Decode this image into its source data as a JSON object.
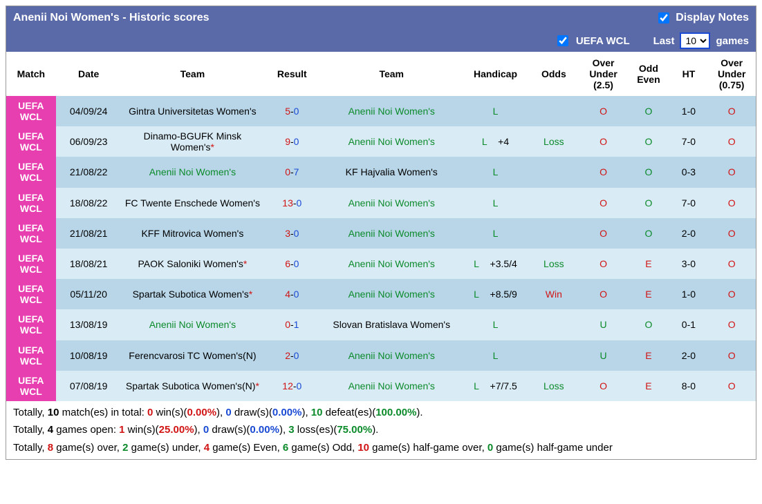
{
  "header": {
    "title": "Anenii Noi Women's - Historic scores",
    "display_notes_label": "Display Notes",
    "display_notes_checked": true
  },
  "filter": {
    "competition_checked": true,
    "competition_label": "UEFA WCL",
    "last_label": "Last",
    "games_label": "games",
    "selected_count": "10"
  },
  "columns": {
    "match": "Match",
    "date": "Date",
    "team1": "Team",
    "result": "Result",
    "team2": "Team",
    "handicap": "Handicap",
    "odds": "Odds",
    "ou25": "Over Under (2.5)",
    "oe": "Odd Even",
    "ht": "HT",
    "ou075": "Over Under (0.75)"
  },
  "rows": [
    {
      "match": "UEFA WCL",
      "date": "04/09/24",
      "t1": "Gintra Universitetas Women's",
      "t1_green": false,
      "t1_star": "",
      "r1": "5",
      "r2": "0",
      "t2": "Anenii Noi Women's",
      "t2_green": true,
      "hcap": "L",
      "hcap_val": "",
      "odds": "",
      "odds_cls": "",
      "ou25": "O",
      "ou25_cls": "red",
      "oe": "O",
      "oe_cls": "green",
      "ht": "1-0",
      "ou075": "O",
      "ou075_cls": "red"
    },
    {
      "match": "UEFA WCL",
      "date": "06/09/23",
      "t1": "Dinamo-BGUFK Minsk Women's",
      "t1_green": false,
      "t1_star": "*",
      "r1": "9",
      "r2": "0",
      "t2": "Anenii Noi Women's",
      "t2_green": true,
      "hcap": "L",
      "hcap_val": "+4",
      "odds": "Loss",
      "odds_cls": "green",
      "ou25": "O",
      "ou25_cls": "red",
      "oe": "O",
      "oe_cls": "green",
      "ht": "7-0",
      "ou075": "O",
      "ou075_cls": "red"
    },
    {
      "match": "UEFA WCL",
      "date": "21/08/22",
      "t1": "Anenii Noi Women's",
      "t1_green": true,
      "t1_star": "",
      "r1": "0",
      "r2": "7",
      "t2": "KF Hajvalia Women's",
      "t2_green": false,
      "hcap": "L",
      "hcap_val": "",
      "odds": "",
      "odds_cls": "",
      "ou25": "O",
      "ou25_cls": "red",
      "oe": "O",
      "oe_cls": "green",
      "ht": "0-3",
      "ou075": "O",
      "ou075_cls": "red"
    },
    {
      "match": "UEFA WCL",
      "date": "18/08/22",
      "t1": "FC Twente Enschede Women's",
      "t1_green": false,
      "t1_star": "",
      "r1": "13",
      "r2": "0",
      "t2": "Anenii Noi Women's",
      "t2_green": true,
      "hcap": "L",
      "hcap_val": "",
      "odds": "",
      "odds_cls": "",
      "ou25": "O",
      "ou25_cls": "red",
      "oe": "O",
      "oe_cls": "green",
      "ht": "7-0",
      "ou075": "O",
      "ou075_cls": "red"
    },
    {
      "match": "UEFA WCL",
      "date": "21/08/21",
      "t1": "KFF Mitrovica Women's",
      "t1_green": false,
      "t1_star": "",
      "r1": "3",
      "r2": "0",
      "t2": "Anenii Noi Women's",
      "t2_green": true,
      "hcap": "L",
      "hcap_val": "",
      "odds": "",
      "odds_cls": "",
      "ou25": "O",
      "ou25_cls": "red",
      "oe": "O",
      "oe_cls": "green",
      "ht": "2-0",
      "ou075": "O",
      "ou075_cls": "red"
    },
    {
      "match": "UEFA WCL",
      "date": "18/08/21",
      "t1": "PAOK Saloniki Women's",
      "t1_green": false,
      "t1_star": "*",
      "r1": "6",
      "r2": "0",
      "t2": "Anenii Noi Women's",
      "t2_green": true,
      "hcap": "L",
      "hcap_val": "+3.5/4",
      "odds": "Loss",
      "odds_cls": "green",
      "ou25": "O",
      "ou25_cls": "red",
      "oe": "E",
      "oe_cls": "red",
      "ht": "3-0",
      "ou075": "O",
      "ou075_cls": "red"
    },
    {
      "match": "UEFA WCL",
      "date": "05/11/20",
      "t1": "Spartak Subotica Women's",
      "t1_green": false,
      "t1_star": "*",
      "r1": "4",
      "r2": "0",
      "t2": "Anenii Noi Women's",
      "t2_green": true,
      "hcap": "L",
      "hcap_val": "+8.5/9",
      "odds": "Win",
      "odds_cls": "red",
      "ou25": "O",
      "ou25_cls": "red",
      "oe": "E",
      "oe_cls": "red",
      "ht": "1-0",
      "ou075": "O",
      "ou075_cls": "red"
    },
    {
      "match": "UEFA WCL",
      "date": "13/08/19",
      "t1": "Anenii Noi Women's",
      "t1_green": true,
      "t1_star": "",
      "r1": "0",
      "r2": "1",
      "t2": "Slovan Bratislava Women's",
      "t2_green": false,
      "hcap": "L",
      "hcap_val": "",
      "odds": "",
      "odds_cls": "",
      "ou25": "U",
      "ou25_cls": "green",
      "oe": "O",
      "oe_cls": "green",
      "ht": "0-1",
      "ou075": "O",
      "ou075_cls": "red"
    },
    {
      "match": "UEFA WCL",
      "date": "10/08/19",
      "t1": "Ferencvarosi TC Women's(N)",
      "t1_green": false,
      "t1_star": "",
      "r1": "2",
      "r2": "0",
      "t2": "Anenii Noi Women's",
      "t2_green": true,
      "hcap": "L",
      "hcap_val": "",
      "odds": "",
      "odds_cls": "",
      "ou25": "U",
      "ou25_cls": "green",
      "oe": "E",
      "oe_cls": "red",
      "ht": "2-0",
      "ou075": "O",
      "ou075_cls": "red"
    },
    {
      "match": "UEFA WCL",
      "date": "07/08/19",
      "t1": "Spartak Subotica Women's(N)",
      "t1_green": false,
      "t1_star": "*",
      "r1": "12",
      "r2": "0",
      "t2": "Anenii Noi Women's",
      "t2_green": true,
      "hcap": "L",
      "hcap_val": "+7/7.5",
      "odds": "Loss",
      "odds_cls": "green",
      "ou25": "O",
      "ou25_cls": "red",
      "oe": "E",
      "oe_cls": "red",
      "ht": "8-0",
      "ou075": "O",
      "ou075_cls": "red"
    }
  ],
  "summary": {
    "line1": {
      "total": "10",
      "wins": "0",
      "wins_pct": "0.00%",
      "draws": "0",
      "draws_pct": "0.00%",
      "defeats": "10",
      "defeats_pct": "100.00%"
    },
    "line2": {
      "open": "4",
      "wins": "1",
      "wins_pct": "25.00%",
      "draws": "0",
      "draws_pct": "0.00%",
      "loss": "3",
      "loss_pct": "75.00%"
    },
    "line3": {
      "over": "8",
      "under": "2",
      "even": "4",
      "odd": "6",
      "hg_over": "10",
      "hg_under": "0"
    }
  }
}
